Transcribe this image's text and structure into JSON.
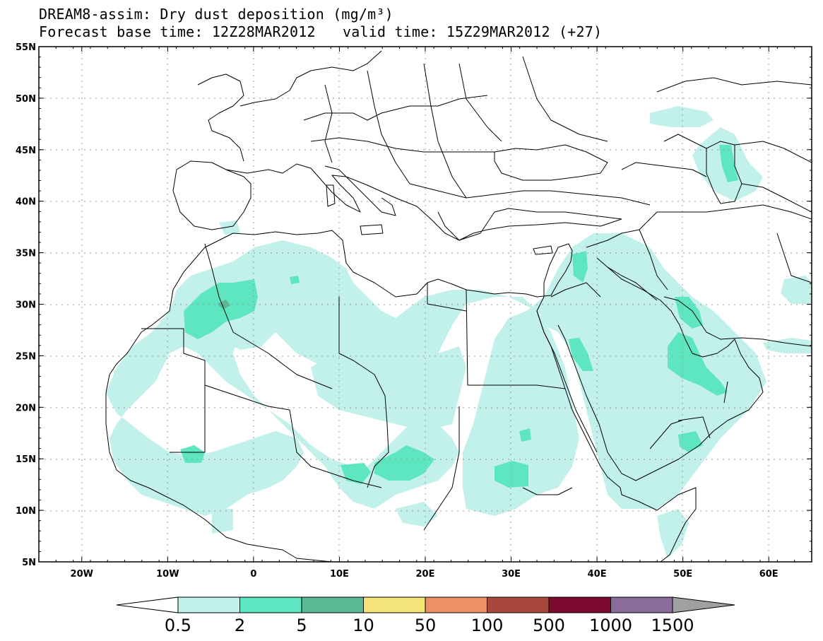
{
  "header": {
    "title": "DREAM8-assim: Dry dust deposition (mg/m³)",
    "base_time": "Forecast base time: 12Z28MAR2012",
    "valid_time": "valid time: 15Z29MAR2012 (+27)"
  },
  "map": {
    "lon_range": [
      -25,
      65
    ],
    "lat_range": [
      5,
      55
    ],
    "lon_ticks": [
      "20W",
      "10W",
      "0",
      "10E",
      "20E",
      "30E",
      "40E",
      "50E",
      "60E"
    ],
    "lat_ticks": [
      "55N",
      "50N",
      "45N",
      "40N",
      "35N",
      "30N",
      "25N",
      "20N",
      "15N",
      "10N",
      "5N"
    ],
    "gridlines": "dotted",
    "region": "North Africa, Middle East and Europe"
  },
  "colorbar": {
    "labels": [
      "0.5",
      "2",
      "5",
      "10",
      "50",
      "100",
      "500",
      "1000",
      "1500"
    ],
    "colors": [
      "#c2f0ea",
      "#5ee6c0",
      "#5ab894",
      "#f4e47a",
      "#ec9068",
      "#a8483c",
      "#7c0a2e",
      "#8a6c9c"
    ],
    "under_color": "#ffffff",
    "over_color": "#a0a0a0"
  }
}
